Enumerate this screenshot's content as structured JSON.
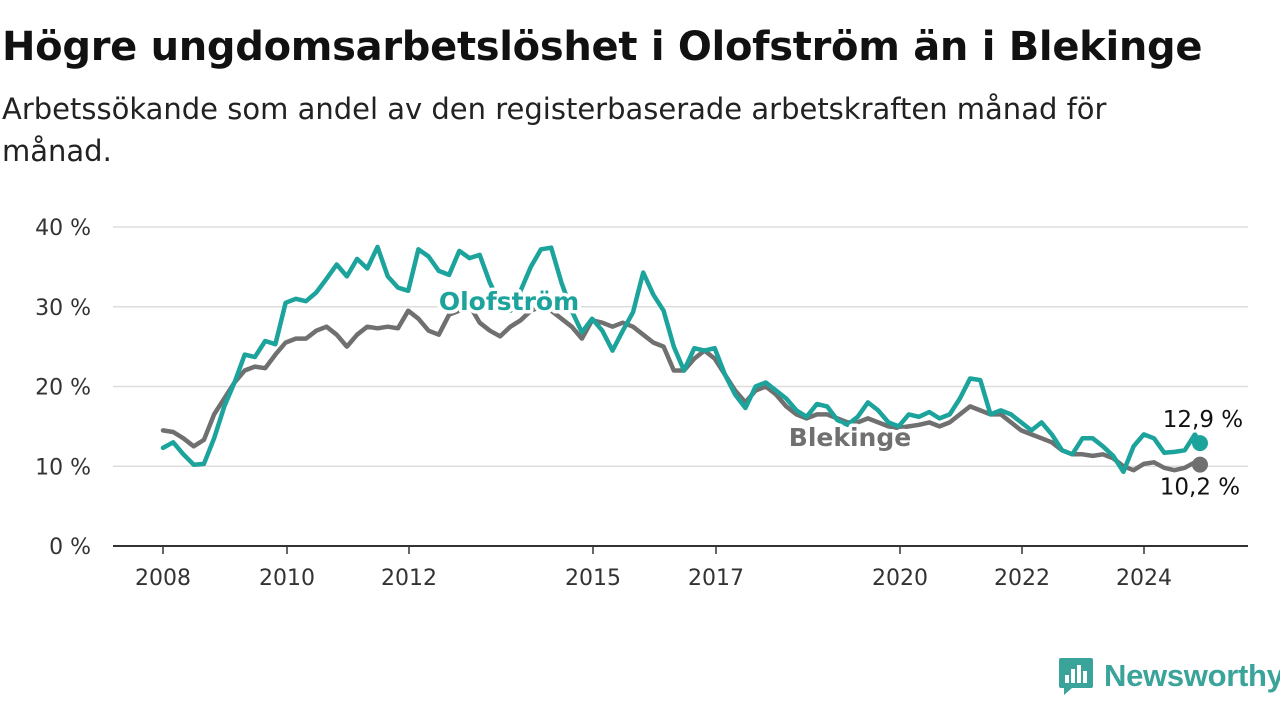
{
  "title": "Högre ungdomsarbetslöshet i Olofström än i Blekinge",
  "subtitle": "Arbetssökande som andel av den registerbaserade arbetskraften månad för månad.",
  "logo_text": "Newsworthy",
  "logo_icon": "bar-chart-speech-bubble-icon",
  "colors": {
    "olofstrom": "#1ba39c",
    "blekinge": "#707070",
    "grid": "#dddddd",
    "axis": "#333333"
  },
  "chart_data": {
    "type": "line",
    "title": "Högre ungdomsarbetslöshet i Olofström än i Blekinge",
    "subtitle": "Arbetssökande som andel av den registerbaserade arbetskraften månad för månad.",
    "x_ticks": [
      "2008",
      "2010",
      "2012",
      "2015",
      "2017",
      "2020",
      "2022",
      "2024"
    ],
    "y_ticks": [
      "0 %",
      "10 %",
      "20 %",
      "30 %",
      "40 %"
    ],
    "ylim": [
      0,
      40
    ],
    "xlim": [
      "2008-01",
      "2024-12"
    ],
    "grid": "horizontal",
    "legend": "inline labels",
    "series": [
      {
        "name": "Olofström",
        "label": "Olofström",
        "end_label": "12,9 %",
        "points": [
          [
            "2008-01",
            12.3
          ],
          [
            "2008-03",
            13.0
          ],
          [
            "2008-05",
            11.5
          ],
          [
            "2008-07",
            10.2
          ],
          [
            "2008-09",
            10.3
          ],
          [
            "2008-11",
            13.5
          ],
          [
            "2009-01",
            17.5
          ],
          [
            "2009-03",
            20.5
          ],
          [
            "2009-05",
            24.0
          ],
          [
            "2009-07",
            23.7
          ],
          [
            "2009-09",
            25.7
          ],
          [
            "2009-11",
            25.3
          ],
          [
            "2010-01",
            30.5
          ],
          [
            "2010-03",
            31.0
          ],
          [
            "2010-05",
            30.7
          ],
          [
            "2010-07",
            31.8
          ],
          [
            "2010-09",
            33.5
          ],
          [
            "2010-11",
            35.3
          ],
          [
            "2011-01",
            33.8
          ],
          [
            "2011-03",
            36.0
          ],
          [
            "2011-05",
            34.8
          ],
          [
            "2011-07",
            37.5
          ],
          [
            "2011-09",
            33.8
          ],
          [
            "2011-11",
            32.4
          ],
          [
            "2012-01",
            32.0
          ],
          [
            "2012-03",
            37.2
          ],
          [
            "2012-05",
            36.3
          ],
          [
            "2012-07",
            34.5
          ],
          [
            "2012-09",
            34.0
          ],
          [
            "2012-11",
            37.0
          ],
          [
            "2013-01",
            36.1
          ],
          [
            "2013-03",
            36.5
          ],
          [
            "2013-05",
            33.0
          ],
          [
            "2013-07",
            30.4
          ],
          [
            "2013-09",
            29.5
          ],
          [
            "2013-11",
            32.0
          ],
          [
            "2014-01",
            35.0
          ],
          [
            "2014-03",
            37.2
          ],
          [
            "2014-05",
            37.4
          ],
          [
            "2014-07",
            33.0
          ],
          [
            "2014-09",
            29.5
          ],
          [
            "2014-11",
            26.8
          ],
          [
            "2015-01",
            28.5
          ],
          [
            "2015-03",
            27.0
          ],
          [
            "2015-05",
            24.5
          ],
          [
            "2015-07",
            27.0
          ],
          [
            "2015-09",
            29.3
          ],
          [
            "2015-11",
            34.3
          ],
          [
            "2016-01",
            31.5
          ],
          [
            "2016-03",
            29.5
          ],
          [
            "2016-05",
            25.0
          ],
          [
            "2016-07",
            22.0
          ],
          [
            "2016-09",
            24.8
          ],
          [
            "2016-11",
            24.5
          ],
          [
            "2017-01",
            24.8
          ],
          [
            "2017-03",
            21.5
          ],
          [
            "2017-05",
            19.0
          ],
          [
            "2017-07",
            17.3
          ],
          [
            "2017-09",
            20.0
          ],
          [
            "2017-11",
            20.5
          ],
          [
            "2018-01",
            19.5
          ],
          [
            "2018-03",
            18.5
          ],
          [
            "2018-05",
            17.0
          ],
          [
            "2018-07",
            16.2
          ],
          [
            "2018-09",
            17.8
          ],
          [
            "2018-11",
            17.5
          ],
          [
            "2019-01",
            15.8
          ],
          [
            "2019-03",
            15.2
          ],
          [
            "2019-05",
            16.2
          ],
          [
            "2019-07",
            18.0
          ],
          [
            "2019-09",
            17.0
          ],
          [
            "2019-11",
            15.5
          ],
          [
            "2020-01",
            15.0
          ],
          [
            "2020-03",
            16.5
          ],
          [
            "2020-05",
            16.2
          ],
          [
            "2020-07",
            16.8
          ],
          [
            "2020-09",
            16.0
          ],
          [
            "2020-11",
            16.5
          ],
          [
            "2021-01",
            18.5
          ],
          [
            "2021-03",
            21.0
          ],
          [
            "2021-05",
            20.8
          ],
          [
            "2021-07",
            16.5
          ],
          [
            "2021-09",
            17.0
          ],
          [
            "2021-11",
            16.5
          ],
          [
            "2022-01",
            15.5
          ],
          [
            "2022-03",
            14.5
          ],
          [
            "2022-05",
            15.5
          ],
          [
            "2022-07",
            14.0
          ],
          [
            "2022-09",
            12.0
          ],
          [
            "2022-11",
            11.5
          ],
          [
            "2023-01",
            13.5
          ],
          [
            "2023-03",
            13.5
          ],
          [
            "2023-05",
            12.5
          ],
          [
            "2023-07",
            11.3
          ],
          [
            "2023-09",
            9.3
          ],
          [
            "2023-11",
            12.5
          ],
          [
            "2024-01",
            14.0
          ],
          [
            "2024-03",
            13.5
          ],
          [
            "2024-05",
            11.7
          ],
          [
            "2024-07",
            11.8
          ],
          [
            "2024-09",
            12.0
          ],
          [
            "2024-11",
            14.0
          ],
          [
            "2024-12",
            12.9
          ]
        ]
      },
      {
        "name": "Blekinge",
        "label": "Blekinge",
        "end_label": "10,2 %",
        "points": [
          [
            "2008-01",
            14.5
          ],
          [
            "2008-03",
            14.3
          ],
          [
            "2008-05",
            13.5
          ],
          [
            "2008-07",
            12.5
          ],
          [
            "2008-09",
            13.3
          ],
          [
            "2008-11",
            16.5
          ],
          [
            "2009-01",
            18.5
          ],
          [
            "2009-03",
            20.5
          ],
          [
            "2009-05",
            22.0
          ],
          [
            "2009-07",
            22.5
          ],
          [
            "2009-09",
            22.3
          ],
          [
            "2009-11",
            24.0
          ],
          [
            "2010-01",
            25.5
          ],
          [
            "2010-03",
            26.0
          ],
          [
            "2010-05",
            26.0
          ],
          [
            "2010-07",
            27.0
          ],
          [
            "2010-09",
            27.5
          ],
          [
            "2010-11",
            26.5
          ],
          [
            "2011-01",
            25.0
          ],
          [
            "2011-03",
            26.5
          ],
          [
            "2011-05",
            27.5
          ],
          [
            "2011-07",
            27.3
          ],
          [
            "2011-09",
            27.5
          ],
          [
            "2011-11",
            27.3
          ],
          [
            "2012-01",
            29.5
          ],
          [
            "2012-03",
            28.5
          ],
          [
            "2012-05",
            27.0
          ],
          [
            "2012-07",
            26.5
          ],
          [
            "2012-09",
            29.0
          ],
          [
            "2012-11",
            29.5
          ],
          [
            "2013-01",
            30.2
          ],
          [
            "2013-03",
            28.0
          ],
          [
            "2013-05",
            27.0
          ],
          [
            "2013-07",
            26.3
          ],
          [
            "2013-09",
            27.5
          ],
          [
            "2013-11",
            28.3
          ],
          [
            "2014-01",
            29.5
          ],
          [
            "2014-03",
            30.0
          ],
          [
            "2014-05",
            29.5
          ],
          [
            "2014-07",
            28.5
          ],
          [
            "2014-09",
            27.5
          ],
          [
            "2014-11",
            26.0
          ],
          [
            "2015-01",
            28.3
          ],
          [
            "2015-03",
            28.0
          ],
          [
            "2015-05",
            27.5
          ],
          [
            "2015-07",
            28.0
          ],
          [
            "2015-09",
            27.5
          ],
          [
            "2015-11",
            26.5
          ],
          [
            "2016-01",
            25.5
          ],
          [
            "2016-03",
            25.0
          ],
          [
            "2016-05",
            22.0
          ],
          [
            "2016-07",
            22.0
          ],
          [
            "2016-09",
            23.5
          ],
          [
            "2016-11",
            24.5
          ],
          [
            "2017-01",
            23.5
          ],
          [
            "2017-03",
            21.5
          ],
          [
            "2017-05",
            19.5
          ],
          [
            "2017-07",
            18.0
          ],
          [
            "2017-09",
            19.5
          ],
          [
            "2017-11",
            20.0
          ],
          [
            "2018-01",
            19.0
          ],
          [
            "2018-03",
            17.5
          ],
          [
            "2018-05",
            16.5
          ],
          [
            "2018-07",
            16.0
          ],
          [
            "2018-09",
            16.5
          ],
          [
            "2018-11",
            16.5
          ],
          [
            "2019-01",
            16.0
          ],
          [
            "2019-03",
            15.5
          ],
          [
            "2019-05",
            15.5
          ],
          [
            "2019-07",
            16.0
          ],
          [
            "2019-09",
            15.5
          ],
          [
            "2019-11",
            15.0
          ],
          [
            "2020-01",
            14.8
          ],
          [
            "2020-03",
            15.0
          ],
          [
            "2020-05",
            15.2
          ],
          [
            "2020-07",
            15.5
          ],
          [
            "2020-09",
            15.0
          ],
          [
            "2020-11",
            15.5
          ],
          [
            "2021-01",
            16.5
          ],
          [
            "2021-03",
            17.5
          ],
          [
            "2021-05",
            17.0
          ],
          [
            "2021-07",
            16.5
          ],
          [
            "2021-09",
            16.5
          ],
          [
            "2021-11",
            15.5
          ],
          [
            "2022-01",
            14.5
          ],
          [
            "2022-03",
            14.0
          ],
          [
            "2022-05",
            13.5
          ],
          [
            "2022-07",
            13.0
          ],
          [
            "2022-09",
            12.0
          ],
          [
            "2022-11",
            11.5
          ],
          [
            "2023-01",
            11.5
          ],
          [
            "2023-03",
            11.3
          ],
          [
            "2023-05",
            11.5
          ],
          [
            "2023-07",
            11.0
          ],
          [
            "2023-09",
            10.0
          ],
          [
            "2023-11",
            9.5
          ],
          [
            "2024-01",
            10.3
          ],
          [
            "2024-03",
            10.5
          ],
          [
            "2024-05",
            9.8
          ],
          [
            "2024-07",
            9.5
          ],
          [
            "2024-09",
            9.8
          ],
          [
            "2024-11",
            10.5
          ],
          [
            "2024-12",
            10.2
          ]
        ]
      }
    ]
  }
}
